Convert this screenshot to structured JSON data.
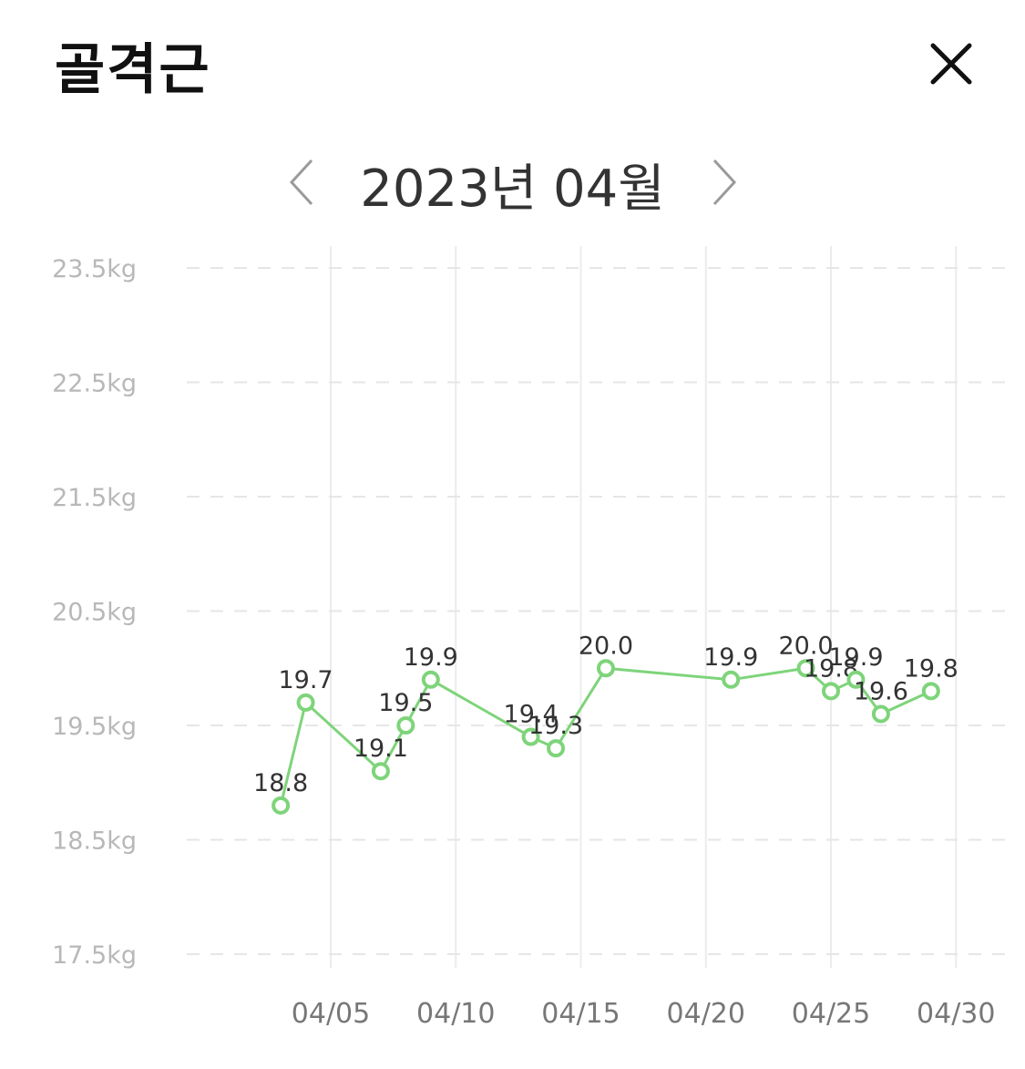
{
  "header": {
    "title": "골격근",
    "close_icon": "close-icon"
  },
  "month_nav": {
    "label": "2023년 04월",
    "prev_icon": "chevron-left-icon",
    "next_icon": "chevron-right-icon"
  },
  "chart_data": {
    "type": "line",
    "title": "",
    "xlabel": "",
    "ylabel": "",
    "x": [
      "04/03",
      "04/04",
      "04/07",
      "04/08",
      "04/09",
      "04/13",
      "04/14",
      "04/16",
      "04/21",
      "04/24",
      "04/25",
      "04/26",
      "04/27",
      "04/29"
    ],
    "values": [
      18.8,
      19.7,
      19.1,
      19.5,
      19.9,
      19.4,
      19.3,
      20.0,
      19.9,
      20.0,
      19.8,
      19.9,
      19.6,
      19.8
    ],
    "ylim": [
      17.5,
      23.5
    ],
    "yticks": [
      "17.5kg",
      "18.5kg",
      "19.5kg",
      "20.5kg",
      "21.5kg",
      "22.5kg",
      "23.5kg"
    ],
    "xticks": [
      "04/05",
      "04/10",
      "04/15",
      "04/20",
      "04/25",
      "04/30"
    ],
    "grid": true,
    "line_color": "#7ed47a",
    "marker_fill": "#ffffff"
  }
}
